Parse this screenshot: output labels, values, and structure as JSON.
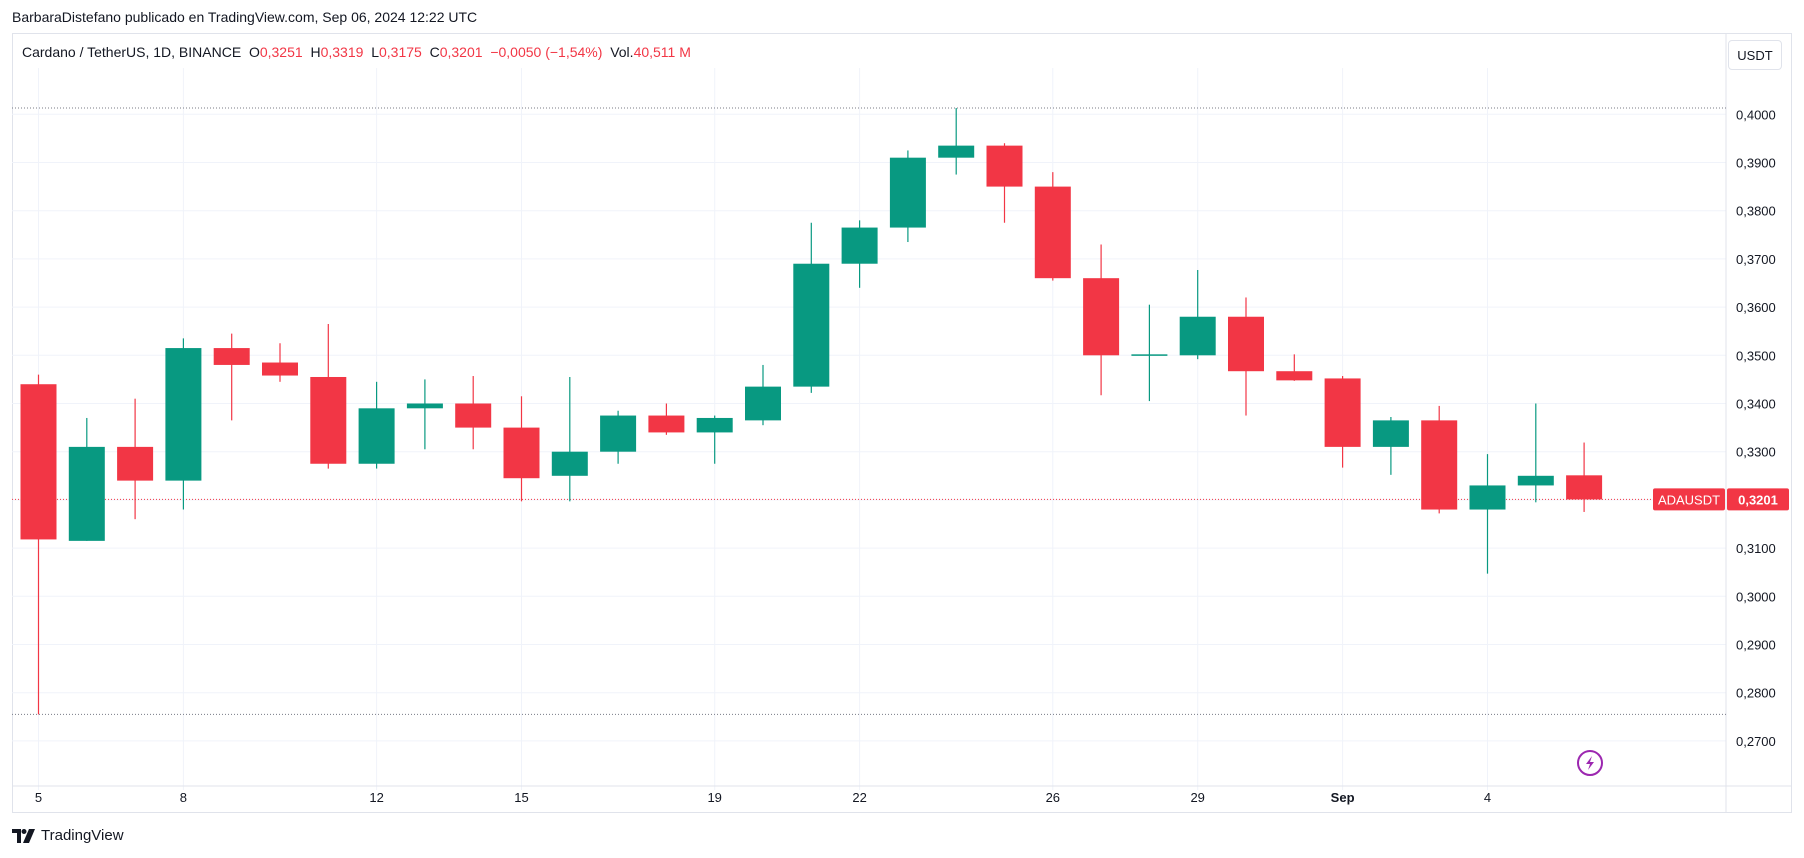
{
  "attribution": "BarbaraDistefano publicado en TradingView.com, Sep 06, 2024 12:22 UTC",
  "legend": {
    "symbol": "Cardano / TetherUS, 1D, BINANCE",
    "o_label": "O",
    "o_value": "0,3251",
    "h_label": "H",
    "h_value": "0,3319",
    "l_label": "L",
    "l_value": "0,3175",
    "c_label": "C",
    "c_value": "0,3201",
    "change": "−0,0050 (−1,54%)",
    "vol_label": "Vol.",
    "vol_value": "40,511 M"
  },
  "currency_button": "USDT",
  "price_tag": {
    "symbol": "ADAUSDT",
    "value": "0,3201"
  },
  "footer_brand": "TradingView",
  "colors": {
    "up": "#089981",
    "down": "#f23645",
    "grid": "#f0f3fa",
    "text": "#131722",
    "accent": "#9c27b0"
  },
  "icons": [
    "tradingview-logo-icon",
    "lightning-icon"
  ],
  "chart_data": {
    "type": "candlestick",
    "title": "Cardano / TetherUS, 1D, BINANCE",
    "ylim": [
      0.2655,
      0.4115
    ],
    "y_ticks": [
      0.27,
      0.28,
      0.29,
      0.3,
      0.31,
      0.32,
      0.33,
      0.34,
      0.35,
      0.36,
      0.37,
      0.38,
      0.39,
      0.4
    ],
    "y_tick_labels": [
      "0,2700",
      "0,2800",
      "0,2900",
      "0,3000",
      "0,3100",
      "0,3200",
      "0,3300",
      "0,3400",
      "0,3500",
      "0,3600",
      "0,3700",
      "0,3800",
      "0,3900",
      "0,4000"
    ],
    "x_tick_labels": [
      {
        "index": 0,
        "label": "5"
      },
      {
        "index": 3,
        "label": "8"
      },
      {
        "index": 7,
        "label": "12"
      },
      {
        "index": 10,
        "label": "15"
      },
      {
        "index": 14,
        "label": "19"
      },
      {
        "index": 17,
        "label": "22"
      },
      {
        "index": 21,
        "label": "26"
      },
      {
        "index": 24,
        "label": "29"
      },
      {
        "index": 27,
        "label": "Sep",
        "bold": true
      },
      {
        "index": 30,
        "label": "4"
      }
    ],
    "period_high": 0.4013,
    "period_low": 0.2755,
    "last_close": 0.3201,
    "candles": [
      {
        "o": 0.344,
        "h": 0.346,
        "l": 0.2755,
        "c": 0.3118
      },
      {
        "o": 0.3115,
        "h": 0.337,
        "l": 0.3115,
        "c": 0.331
      },
      {
        "o": 0.331,
        "h": 0.341,
        "l": 0.316,
        "c": 0.324
      },
      {
        "o": 0.324,
        "h": 0.3535,
        "l": 0.318,
        "c": 0.3515
      },
      {
        "o": 0.3515,
        "h": 0.3545,
        "l": 0.3365,
        "c": 0.348
      },
      {
        "o": 0.3485,
        "h": 0.3525,
        "l": 0.3445,
        "c": 0.3458
      },
      {
        "o": 0.3455,
        "h": 0.3565,
        "l": 0.3265,
        "c": 0.3275
      },
      {
        "o": 0.3275,
        "h": 0.3445,
        "l": 0.3265,
        "c": 0.339
      },
      {
        "o": 0.339,
        "h": 0.345,
        "l": 0.3305,
        "c": 0.34
      },
      {
        "o": 0.34,
        "h": 0.3457,
        "l": 0.3305,
        "c": 0.335
      },
      {
        "o": 0.335,
        "h": 0.3415,
        "l": 0.3197,
        "c": 0.3245
      },
      {
        "o": 0.325,
        "h": 0.3455,
        "l": 0.3197,
        "c": 0.33
      },
      {
        "o": 0.33,
        "h": 0.3385,
        "l": 0.3275,
        "c": 0.3375
      },
      {
        "o": 0.3375,
        "h": 0.34,
        "l": 0.3335,
        "c": 0.334
      },
      {
        "o": 0.334,
        "h": 0.3375,
        "l": 0.3275,
        "c": 0.337
      },
      {
        "o": 0.3365,
        "h": 0.348,
        "l": 0.3355,
        "c": 0.3435
      },
      {
        "o": 0.3435,
        "h": 0.3775,
        "l": 0.3422,
        "c": 0.369
      },
      {
        "o": 0.369,
        "h": 0.378,
        "l": 0.364,
        "c": 0.3765
      },
      {
        "o": 0.3765,
        "h": 0.3925,
        "l": 0.3735,
        "c": 0.391
      },
      {
        "o": 0.391,
        "h": 0.4013,
        "l": 0.3875,
        "c": 0.3935
      },
      {
        "o": 0.3935,
        "h": 0.394,
        "l": 0.3775,
        "c": 0.385
      },
      {
        "o": 0.385,
        "h": 0.388,
        "l": 0.3655,
        "c": 0.366
      },
      {
        "o": 0.366,
        "h": 0.373,
        "l": 0.3417,
        "c": 0.35
      },
      {
        "o": 0.35,
        "h": 0.3605,
        "l": 0.3405,
        "c": 0.3502
      },
      {
        "o": 0.35,
        "h": 0.3677,
        "l": 0.3492,
        "c": 0.358
      },
      {
        "o": 0.358,
        "h": 0.362,
        "l": 0.3375,
        "c": 0.3467
      },
      {
        "o": 0.3467,
        "h": 0.3502,
        "l": 0.3447,
        "c": 0.3448
      },
      {
        "o": 0.3452,
        "h": 0.3457,
        "l": 0.3267,
        "c": 0.331
      },
      {
        "o": 0.331,
        "h": 0.3372,
        "l": 0.3252,
        "c": 0.3365
      },
      {
        "o": 0.3365,
        "h": 0.3395,
        "l": 0.3172,
        "c": 0.318
      },
      {
        "o": 0.318,
        "h": 0.3295,
        "l": 0.3047,
        "c": 0.323
      },
      {
        "o": 0.323,
        "h": 0.34,
        "l": 0.3195,
        "c": 0.325
      },
      {
        "o": 0.3251,
        "h": 0.3319,
        "l": 0.3175,
        "c": 0.3201
      }
    ]
  }
}
